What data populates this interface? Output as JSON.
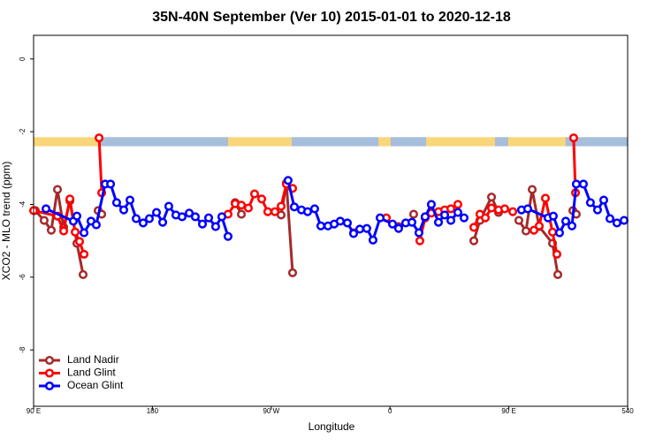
{
  "chart_data": {
    "type": "line",
    "title": "35N-40N September (Ver 10)   2015-01-01 to 2020-12-18",
    "x_label": "Longitude",
    "y_label": "XCO2 - MLO trend (ppm)",
    "xlim": [
      90,
      540
    ],
    "ylim": [
      -9.55,
      0.65
    ],
    "xticks": [
      {
        "value": 90,
        "label": "90 E"
      },
      180,
      {
        "value": 270,
        "label": "90 W"
      },
      {
        "value": 360,
        "label": "0"
      },
      {
        "value": 450,
        "label": "90 E"
      },
      540
    ],
    "yticks": [
      0,
      -2,
      -4,
      -6,
      -8
    ],
    "legend": "bottom-left",
    "band": {
      "ylim": [
        -2.4,
        -2.15
      ],
      "segments": [
        {
          "x": [
            90,
            139.6
          ],
          "color": "#f9d67a"
        },
        {
          "x": [
            139.6,
            237.3
          ],
          "color": "#a6bddb"
        },
        {
          "x": [
            237.3,
            285.5
          ],
          "color": "#f9d67a"
        },
        {
          "x": [
            285.5,
            351.2
          ],
          "color": "#a6bddb"
        },
        {
          "x": [
            351.2,
            360.5
          ],
          "color": "#f9d67a"
        },
        {
          "x": [
            360.5,
            387.3
          ],
          "color": "#a6bddb"
        },
        {
          "x": [
            387.3,
            439.5
          ],
          "color": "#f9d67a"
        },
        {
          "x": [
            439.5,
            449.5
          ],
          "color": "#a6bddb"
        },
        {
          "x": [
            449.5,
            493
          ],
          "color": "#f9d67a"
        },
        {
          "x": [
            493,
            540
          ],
          "color": "#a6bddb"
        }
      ]
    },
    "series": [
      {
        "name": "Land Nadir",
        "color": "#a52a2a",
        "x": [
          91.3,
          98.0,
          103.4,
          108.1,
          112.8,
          117.5,
          122.8,
          127.5,
          null,
          138.9,
          141.6,
          null,
          242.7,
          247.4,
          null,
          277.5,
          281.5,
          286.2,
          null,
          366.5,
          null,
          377.9,
          null,
          423.5,
          428.1,
          436.9,
          442.2,
          null,
          457.6,
          463.0,
          467.7,
          473.0,
          483.1,
          487.1,
          null,
          498.5,
          501.1
        ],
        "values": [
          -4.17,
          -4.44,
          -4.71,
          -3.59,
          -4.63,
          -3.9,
          -5.07,
          -5.93,
          null,
          -4.17,
          -4.27,
          null,
          -3.95,
          -4.27,
          null,
          -4.29,
          -3.41,
          -5.88,
          null,
          -4.61,
          null,
          -4.27,
          null,
          -5.0,
          -4.44,
          -3.8,
          -4.22,
          null,
          -4.44,
          -4.73,
          -3.59,
          -4.61,
          -5.07,
          -5.93,
          null,
          -4.17,
          -4.27
        ]
      },
      {
        "name": "Land Glint",
        "color": "#ff0000",
        "x": [
          90,
          108.1,
          112.8,
          117.5,
          121.5,
          124.8,
          128.2,
          null,
          139.6,
          141.6,
          null,
          237.3,
          242.7,
          247.4,
          252.7,
          257.4,
          262.8,
          267.4,
          272.8,
          277.5,
          281.5,
          286.2,
          null,
          332.4,
          null,
          357.2,
          null,
          382.6,
          386.6,
          391.3,
          396.7,
          401.4,
          406.1,
          411.4,
          null,
          423.5,
          428.1,
          432.2,
          436.9,
          442.2,
          446.9,
          453.0,
          null,
          469.0,
          473.0,
          477.7,
          483.1,
          486.4,
          null,
          499.1,
          500.5
        ],
        "values": [
          -4.17,
          -4.32,
          -4.73,
          -3.85,
          -4.76,
          -5.02,
          -5.37,
          null,
          -2.17,
          -3.68,
          null,
          -4.27,
          -3.98,
          -4.02,
          -4.1,
          -3.71,
          -3.85,
          -4.2,
          -4.2,
          -4.05,
          -3.44,
          -3.56,
          null,
          -4.78,
          null,
          -4.37,
          null,
          -5.0,
          -4.37,
          -4.24,
          -4.2,
          -4.15,
          -4.12,
          -4.0,
          null,
          -4.63,
          -4.27,
          -4.37,
          -4.1,
          -4.15,
          -4.12,
          -4.2,
          null,
          -4.71,
          -4.59,
          -3.83,
          -4.76,
          -5.37,
          null,
          -2.17,
          -3.68
        ]
      },
      {
        "name": "Ocean Glint",
        "color": "#0000ff",
        "x": [
          99.4,
          120.1,
          122.8,
          128.2,
          133.5,
          137.5,
          144.2,
          148.3,
          152.9,
          158.3,
          163.0,
          167.7,
          173.0,
          177.7,
          183.1,
          187.8,
          192.4,
          197.8,
          202.5,
          207.9,
          212.5,
          217.9,
          222.6,
          227.9,
          232.6,
          237.3,
          null,
          282.8,
          287.5,
          292.9,
          297.6,
          302.9,
          307.6,
          313.0,
          317.7,
          322.3,
          327.7,
          332.4,
          337.1,
          342.4,
          347.1,
          352.5,
          361.9,
          366.5,
          371.9,
          376.6,
          381.9,
          386.6,
          391.3,
          396.7,
          401.4,
          406.1,
          411.4,
          416.1,
          null,
          459.6,
          464.3,
          479.7,
          483.7,
          488.4,
          493.1,
          497.8,
          501.1,
          506.5,
          511.8,
          517.2,
          521.9,
          526.6,
          531.9,
          537.3
        ],
        "values": [
          -4.12,
          -4.46,
          -4.32,
          -4.78,
          -4.46,
          -4.56,
          -3.44,
          -3.44,
          -3.95,
          -4.15,
          -3.88,
          -4.39,
          -4.51,
          -4.39,
          -4.22,
          -4.49,
          -4.05,
          -4.29,
          -4.34,
          -4.24,
          -4.34,
          -4.54,
          -4.37,
          -4.61,
          -4.34,
          -4.88,
          null,
          -3.34,
          -4.07,
          -4.15,
          -4.2,
          -4.12,
          -4.59,
          -4.59,
          -4.54,
          -4.46,
          -4.51,
          -4.8,
          -4.68,
          -4.66,
          -4.98,
          -4.37,
          -4.54,
          -4.66,
          -4.51,
          -4.49,
          -4.78,
          -4.34,
          -4.0,
          -4.49,
          -4.29,
          -4.44,
          -4.22,
          -4.37,
          null,
          -4.15,
          -4.12,
          -4.37,
          -4.32,
          -4.78,
          -4.46,
          -4.59,
          -3.44,
          -3.44,
          -3.95,
          -4.15,
          -3.88,
          -4.39,
          -4.51,
          -4.44
        ]
      }
    ]
  }
}
